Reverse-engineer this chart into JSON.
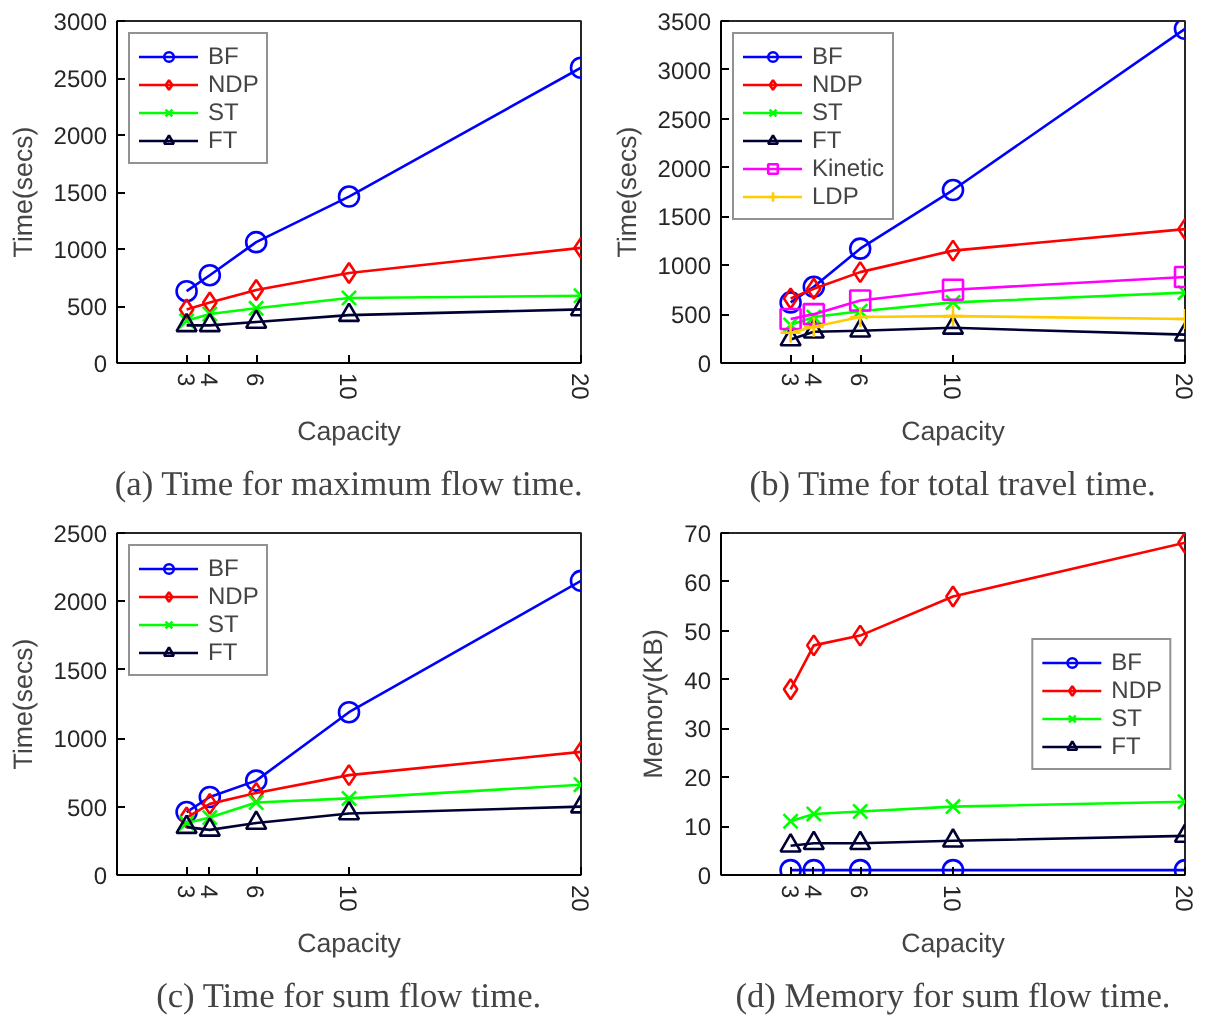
{
  "chart_data": [
    {
      "type": "line",
      "title": "(a) Time for maximum flow time.",
      "xlabel": "Capacity",
      "ylabel": "Time(secs)",
      "x": [
        3,
        4,
        6,
        10,
        20
      ],
      "xlim": [
        0,
        20
      ],
      "xticks": [
        3,
        4,
        6,
        10,
        20
      ],
      "ylim": [
        0,
        3000
      ],
      "yticks": [
        0,
        500,
        1000,
        1500,
        2000,
        2500,
        3000
      ],
      "legend": "top left",
      "grid": false,
      "series": [
        {
          "name": "BF",
          "color": "#0000ff",
          "marker": "circle",
          "values": [
            630,
            770,
            1060,
            1460,
            2590
          ]
        },
        {
          "name": "NDP",
          "color": "#ff0000",
          "marker": "diamond",
          "values": [
            470,
            530,
            640,
            790,
            1010
          ]
        },
        {
          "name": "ST",
          "color": "#00ff00",
          "marker": "x",
          "values": [
            370,
            430,
            480,
            570,
            590
          ]
        },
        {
          "name": "FT",
          "color": "#000033",
          "marker": "triangle",
          "values": [
            330,
            330,
            360,
            420,
            470
          ]
        }
      ]
    },
    {
      "type": "line",
      "title": "(b) Time for total travel time.",
      "xlabel": "Capacity",
      "ylabel": "Time(secs)",
      "x": [
        3,
        4,
        6,
        10,
        20
      ],
      "xlim": [
        0,
        20
      ],
      "xticks": [
        3,
        4,
        6,
        10,
        20
      ],
      "ylim": [
        0,
        3500
      ],
      "yticks": [
        0,
        500,
        1000,
        1500,
        2000,
        2500,
        3000,
        3500
      ],
      "legend": "top left",
      "grid": false,
      "series": [
        {
          "name": "BF",
          "color": "#0000ff",
          "marker": "circle",
          "values": [
            620,
            780,
            1170,
            1770,
            3420
          ]
        },
        {
          "name": "NDP",
          "color": "#ff0000",
          "marker": "diamond",
          "values": [
            660,
            760,
            930,
            1150,
            1370
          ]
        },
        {
          "name": "ST",
          "color": "#00ff00",
          "marker": "x",
          "values": [
            390,
            470,
            530,
            620,
            720
          ]
        },
        {
          "name": "FT",
          "color": "#000033",
          "marker": "triangle",
          "values": [
            240,
            320,
            330,
            360,
            290
          ]
        },
        {
          "name": "Kinetic",
          "color": "#ff00ff",
          "marker": "square",
          "values": [
            450,
            500,
            640,
            750,
            880
          ]
        },
        {
          "name": "LDP",
          "color": "#ffcc00",
          "marker": "cross",
          "values": [
            310,
            370,
            470,
            480,
            450
          ]
        }
      ]
    },
    {
      "type": "line",
      "title": "(c) Time for sum flow time.",
      "xlabel": "Capacity",
      "ylabel": "Time(secs)",
      "x": [
        3,
        4,
        6,
        10,
        20
      ],
      "xlim": [
        0,
        20
      ],
      "xticks": [
        3,
        4,
        6,
        10,
        20
      ],
      "ylim": [
        0,
        2500
      ],
      "yticks": [
        0,
        500,
        1000,
        1500,
        2000,
        2500
      ],
      "legend": "top left",
      "grid": false,
      "series": [
        {
          "name": "BF",
          "color": "#0000ff",
          "marker": "circle",
          "values": [
            460,
            570,
            690,
            1190,
            2150
          ]
        },
        {
          "name": "NDP",
          "color": "#ff0000",
          "marker": "diamond",
          "values": [
            420,
            520,
            600,
            730,
            900
          ]
        },
        {
          "name": "ST",
          "color": "#00ff00",
          "marker": "x",
          "values": [
            380,
            420,
            530,
            560,
            660
          ]
        },
        {
          "name": "FT",
          "color": "#000033",
          "marker": "triangle",
          "values": [
            350,
            330,
            380,
            450,
            500
          ]
        }
      ]
    },
    {
      "type": "line",
      "title": "(d) Memory for sum flow time.",
      "xlabel": "Capacity",
      "ylabel": "Memory(KB)",
      "x": [
        3,
        4,
        6,
        10,
        20
      ],
      "xlim": [
        0,
        20
      ],
      "xticks": [
        3,
        4,
        6,
        10,
        20
      ],
      "ylim": [
        0,
        70
      ],
      "yticks": [
        0,
        10,
        20,
        30,
        40,
        50,
        60,
        70
      ],
      "legend": "right",
      "grid": false,
      "series": [
        {
          "name": "BF",
          "color": "#0000ff",
          "marker": "circle",
          "values": [
            1,
            1,
            1,
            1,
            1
          ]
        },
        {
          "name": "NDP",
          "color": "#ff0000",
          "marker": "diamond",
          "values": [
            38,
            47,
            49,
            57,
            68
          ]
        },
        {
          "name": "ST",
          "color": "#00ff00",
          "marker": "x",
          "values": [
            11,
            12.5,
            13,
            14,
            15
          ]
        },
        {
          "name": "FT",
          "color": "#000033",
          "marker": "triangle",
          "values": [
            6,
            6.5,
            6.5,
            7,
            8
          ]
        }
      ]
    }
  ]
}
